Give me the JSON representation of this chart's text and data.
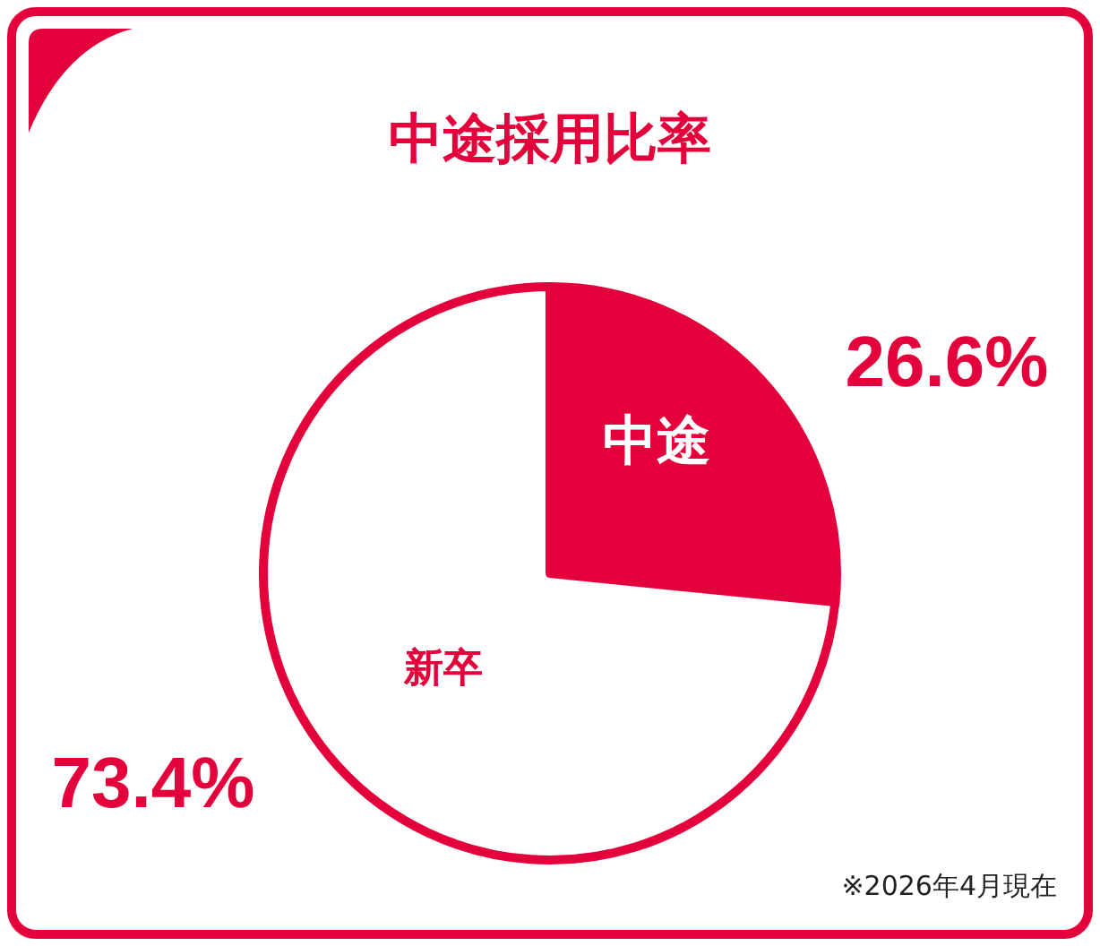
{
  "chart_data": {
    "type": "pie",
    "title": "中途採用比率",
    "categories": [
      "中途",
      "新卒"
    ],
    "values": [
      26.6,
      73.4
    ],
    "colors": [
      "#e4003a",
      "#ffffff"
    ],
    "value_labels": [
      "26.6%",
      "73.4%"
    ],
    "annotations": [
      "※2026年4月現在"
    ]
  }
}
